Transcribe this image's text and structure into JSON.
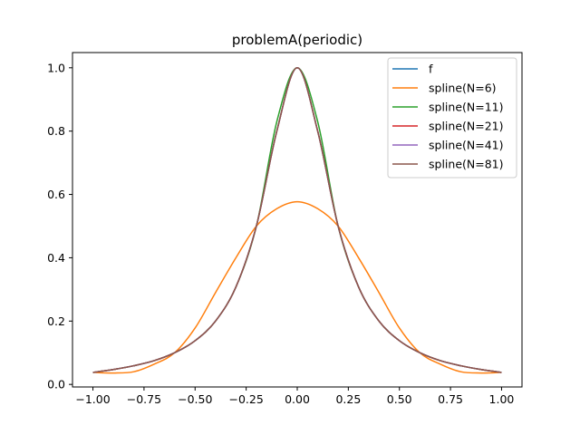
{
  "chart_data": {
    "type": "line",
    "title": "problemA(periodic)",
    "xlabel": "",
    "ylabel": "",
    "xlim": [
      -1.1,
      1.1
    ],
    "ylim": [
      -0.0081,
      1.0481
    ],
    "xticks": [
      -1.0,
      -0.75,
      -0.5,
      -0.25,
      0.0,
      0.25,
      0.5,
      0.75,
      1.0
    ],
    "xtick_labels": [
      "−1.00",
      "−0.75",
      "−0.50",
      "−0.25",
      "0.00",
      "0.25",
      "0.50",
      "0.75",
      "1.00"
    ],
    "yticks": [
      0.0,
      0.2,
      0.4,
      0.6,
      0.8,
      1.0
    ],
    "ytick_labels": [
      "0.0",
      "0.2",
      "0.4",
      "0.6",
      "0.8",
      "1.0"
    ],
    "grid": false,
    "legend_position": "top-right",
    "series": [
      {
        "name": "f",
        "color": "#1f77b4",
        "x": [
          -1.0,
          -0.9,
          -0.8,
          -0.7,
          -0.6,
          -0.5,
          -0.4,
          -0.3,
          -0.2,
          -0.1,
          0.0,
          0.1,
          0.2,
          0.3,
          0.4,
          0.5,
          0.6,
          0.7,
          0.8,
          0.9,
          1.0
        ],
        "y": [
          0.038,
          0.047,
          0.059,
          0.075,
          0.1,
          0.138,
          0.2,
          0.308,
          0.5,
          0.8,
          1.0,
          0.8,
          0.5,
          0.308,
          0.2,
          0.138,
          0.1,
          0.075,
          0.059,
          0.047,
          0.038
        ]
      },
      {
        "name": "spline(N=6)",
        "color": "#ff7f0e",
        "x": [
          -1.0,
          -0.9,
          -0.8,
          -0.7,
          -0.6,
          -0.5,
          -0.4,
          -0.3,
          -0.2,
          -0.1,
          0.0,
          0.1,
          0.2,
          0.3,
          0.4,
          0.5,
          0.6,
          0.7,
          0.8,
          0.9,
          1.0
        ],
        "y": [
          0.038,
          0.036,
          0.04,
          0.064,
          0.1,
          0.178,
          0.29,
          0.4,
          0.5,
          0.555,
          0.577,
          0.555,
          0.5,
          0.4,
          0.29,
          0.178,
          0.1,
          0.064,
          0.04,
          0.036,
          0.038
        ]
      },
      {
        "name": "spline(N=11)",
        "color": "#2ca02c",
        "x": [
          -1.0,
          -0.9,
          -0.8,
          -0.7,
          -0.6,
          -0.5,
          -0.4,
          -0.3,
          -0.2,
          -0.1,
          0.0,
          0.1,
          0.2,
          0.3,
          0.4,
          0.5,
          0.6,
          0.7,
          0.8,
          0.9,
          1.0
        ],
        "y": [
          0.038,
          0.047,
          0.059,
          0.075,
          0.1,
          0.138,
          0.2,
          0.308,
          0.5,
          0.83,
          1.0,
          0.83,
          0.5,
          0.308,
          0.2,
          0.138,
          0.1,
          0.075,
          0.059,
          0.047,
          0.038
        ]
      },
      {
        "name": "spline(N=21)",
        "color": "#d62728",
        "x": [
          -1.0,
          -0.9,
          -0.8,
          -0.7,
          -0.6,
          -0.5,
          -0.4,
          -0.3,
          -0.2,
          -0.1,
          0.0,
          0.1,
          0.2,
          0.3,
          0.4,
          0.5,
          0.6,
          0.7,
          0.8,
          0.9,
          1.0
        ],
        "y": [
          0.038,
          0.047,
          0.059,
          0.075,
          0.1,
          0.138,
          0.2,
          0.308,
          0.5,
          0.8,
          1.0,
          0.8,
          0.5,
          0.308,
          0.2,
          0.138,
          0.1,
          0.075,
          0.059,
          0.047,
          0.038
        ]
      },
      {
        "name": "spline(N=41)",
        "color": "#9467bd",
        "x": [
          -1.0,
          -0.9,
          -0.8,
          -0.7,
          -0.6,
          -0.5,
          -0.4,
          -0.3,
          -0.2,
          -0.1,
          0.0,
          0.1,
          0.2,
          0.3,
          0.4,
          0.5,
          0.6,
          0.7,
          0.8,
          0.9,
          1.0
        ],
        "y": [
          0.038,
          0.047,
          0.059,
          0.075,
          0.1,
          0.138,
          0.2,
          0.308,
          0.5,
          0.8,
          1.0,
          0.8,
          0.5,
          0.308,
          0.2,
          0.138,
          0.1,
          0.075,
          0.059,
          0.047,
          0.038
        ]
      },
      {
        "name": "spline(N=81)",
        "color": "#8c564b",
        "x": [
          -1.0,
          -0.9,
          -0.8,
          -0.7,
          -0.6,
          -0.5,
          -0.4,
          -0.3,
          -0.2,
          -0.1,
          0.0,
          0.1,
          0.2,
          0.3,
          0.4,
          0.5,
          0.6,
          0.7,
          0.8,
          0.9,
          1.0
        ],
        "y": [
          0.038,
          0.047,
          0.059,
          0.075,
          0.1,
          0.138,
          0.2,
          0.308,
          0.5,
          0.8,
          1.0,
          0.8,
          0.5,
          0.308,
          0.2,
          0.138,
          0.1,
          0.075,
          0.059,
          0.047,
          0.038
        ]
      }
    ]
  }
}
